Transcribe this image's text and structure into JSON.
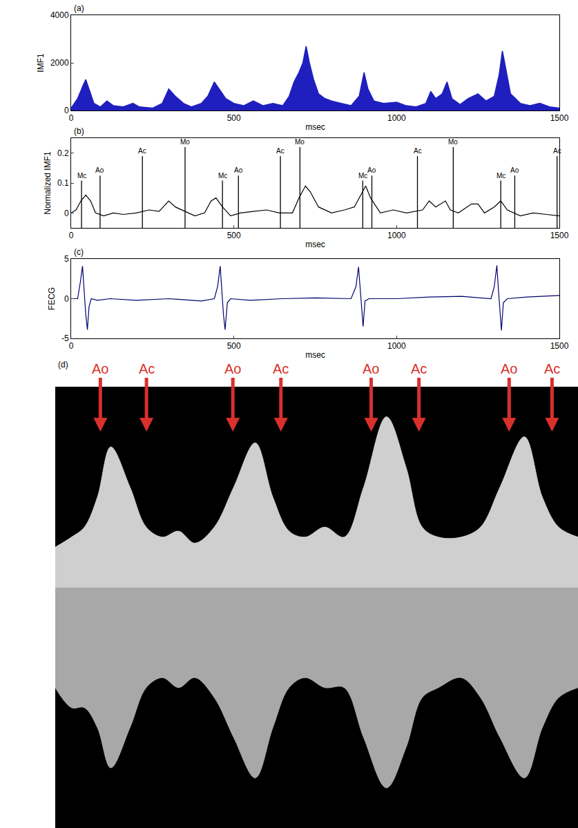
{
  "chart_data": [
    {
      "type": "area",
      "title": "(a)",
      "x_label": "msec",
      "y_label": "IMF1",
      "color": "#1f1fbf",
      "grid": false,
      "xlim": [
        0,
        1500
      ],
      "xticks": [
        0,
        500,
        1000,
        1500
      ],
      "ylim": [
        0,
        4000
      ],
      "yticks": [
        0,
        2000,
        4000
      ],
      "x": [
        0,
        20,
        35,
        45,
        55,
        70,
        90,
        110,
        130,
        160,
        190,
        210,
        250,
        280,
        300,
        320,
        345,
        370,
        400,
        420,
        440,
        455,
        475,
        500,
        530,
        560,
        590,
        620,
        650,
        670,
        685,
        700,
        712,
        722,
        732,
        745,
        760,
        780,
        800,
        830,
        860,
        885,
        900,
        912,
        930,
        960,
        1000,
        1030,
        1060,
        1090,
        1105,
        1120,
        1140,
        1155,
        1170,
        1195,
        1220,
        1250,
        1275,
        1300,
        1315,
        1325,
        1335,
        1350,
        1380,
        1410,
        1440,
        1470,
        1500
      ],
      "values": [
        100,
        500,
        1000,
        1300,
        900,
        300,
        150,
        400,
        200,
        150,
        300,
        150,
        100,
        300,
        900,
        600,
        300,
        150,
        300,
        600,
        1200,
        900,
        500,
        300,
        200,
        400,
        200,
        300,
        200,
        600,
        1200,
        1600,
        2000,
        2700,
        2000,
        1300,
        700,
        500,
        400,
        300,
        200,
        600,
        1600,
        900,
        400,
        300,
        350,
        200,
        150,
        300,
        800,
        500,
        700,
        1200,
        500,
        250,
        500,
        700,
        400,
        600,
        1500,
        2500,
        1800,
        700,
        300,
        200,
        300,
        150,
        100
      ]
    },
    {
      "type": "line",
      "title": "(b)",
      "x_label": "msec",
      "y_label": "Normalized IMF1",
      "color": "#000000",
      "grid": false,
      "xlim": [
        0,
        1500
      ],
      "xticks": [
        0,
        500,
        1000,
        1500
      ],
      "ylim": [
        -0.05,
        0.25
      ],
      "yticks": [
        0,
        0.1,
        0.2
      ],
      "x": [
        0,
        15,
        30,
        45,
        60,
        75,
        100,
        130,
        160,
        200,
        240,
        270,
        300,
        320,
        350,
        380,
        410,
        430,
        445,
        465,
        490,
        520,
        560,
        600,
        640,
        680,
        700,
        720,
        735,
        760,
        800,
        840,
        870,
        890,
        905,
        920,
        950,
        990,
        1030,
        1080,
        1100,
        1120,
        1135,
        1150,
        1165,
        1190,
        1230,
        1250,
        1270,
        1300,
        1320,
        1340,
        1380,
        1420,
        1460,
        1500
      ],
      "values": [
        0,
        0.01,
        0.04,
        0.06,
        0.04,
        0,
        -0.01,
        0,
        -0.005,
        0,
        0.01,
        0.005,
        0.04,
        0.02,
        0.005,
        -0.01,
        0,
        0.04,
        0.05,
        0.02,
        -0.01,
        0,
        0.005,
        0.01,
        0,
        0,
        0.05,
        0.09,
        0.07,
        0.02,
        0,
        0.01,
        0.02,
        0.06,
        0.09,
        0.05,
        0,
        0.01,
        0,
        0.01,
        0.04,
        0.02,
        0.03,
        0.04,
        0.01,
        0,
        0.03,
        0.03,
        0,
        0.02,
        0.04,
        0.01,
        -0.01,
        0,
        -0.005,
        -0.01
      ],
      "events": [
        {
          "label": "Mc",
          "x": 32,
          "value": 0.108
        },
        {
          "label": "Ao",
          "x": 89,
          "value": 0.125
        },
        {
          "label": "Ac",
          "x": 219,
          "value": 0.19
        },
        {
          "label": "Mo",
          "x": 350,
          "value": 0.22
        },
        {
          "label": "Mc",
          "x": 465,
          "value": 0.108
        },
        {
          "label": "Ao",
          "x": 514,
          "value": 0.125
        },
        {
          "label": "Ac",
          "x": 643,
          "value": 0.19
        },
        {
          "label": "Mo",
          "x": 703,
          "value": 0.22
        },
        {
          "label": "Mc",
          "x": 896,
          "value": 0.108
        },
        {
          "label": "Ao",
          "x": 924,
          "value": 0.125
        },
        {
          "label": "Ac",
          "x": 1064,
          "value": 0.19
        },
        {
          "label": "Mo",
          "x": 1174,
          "value": 0.22
        },
        {
          "label": "Mc",
          "x": 1320,
          "value": 0.108
        },
        {
          "label": "Ao",
          "x": 1363,
          "value": 0.125
        },
        {
          "label": "Ac",
          "x": 1493,
          "value": 0.19
        }
      ]
    },
    {
      "type": "line",
      "title": "(c)",
      "x_label": "msec",
      "y_label": "FECG",
      "color": "#00006e",
      "grid": false,
      "xlim": [
        0,
        1500
      ],
      "xticks": [
        0,
        500,
        1000,
        1500
      ],
      "ylim": [
        -5,
        5
      ],
      "yticks": [
        -5,
        0,
        5
      ],
      "x": [
        0,
        20,
        28,
        35,
        40,
        45,
        50,
        55,
        62,
        80,
        120,
        200,
        300,
        400,
        440,
        450,
        458,
        463,
        468,
        473,
        480,
        490,
        550,
        650,
        750,
        860,
        875,
        883,
        888,
        893,
        897,
        903,
        915,
        1000,
        1100,
        1200,
        1290,
        1300,
        1308,
        1313,
        1318,
        1322,
        1328,
        1340,
        1400,
        1500
      ],
      "values": [
        0,
        0,
        2,
        4.1,
        1,
        -2,
        -3.9,
        -1,
        0,
        -0.2,
        0,
        -0.2,
        0,
        -0.3,
        0,
        1.5,
        4.1,
        1,
        -2,
        -3.9,
        -0.5,
        0,
        -0.2,
        0,
        0.1,
        0,
        1.5,
        4,
        1,
        -2,
        -3.5,
        -0.3,
        0,
        0,
        0.2,
        0.3,
        0,
        1.5,
        4.2,
        1,
        -2,
        -4,
        -0.5,
        0,
        0.2,
        0.4
      ]
    },
    {
      "type": "area",
      "title": "(d)",
      "tick_labels": false,
      "grid": false,
      "xlim": [
        -50,
        1560
      ],
      "ylim": [
        -1.2,
        1
      ],
      "x": [
        -50,
        0,
        40,
        80,
        121,
        180,
        230,
        280,
        330,
        380,
        440,
        500,
        566,
        620,
        670,
        720,
        780,
        840,
        900,
        970,
        1030,
        1080,
        1130,
        1200,
        1260,
        1320,
        1395,
        1450,
        1500,
        1560
      ],
      "series": [
        {
          "color": "#cfcfcf",
          "values": [
            0.2,
            0.25,
            0.3,
            0.45,
            0.7,
            0.5,
            0.3,
            0.25,
            0.28,
            0.22,
            0.3,
            0.5,
            0.72,
            0.45,
            0.28,
            0.25,
            0.3,
            0.25,
            0.5,
            0.85,
            0.6,
            0.3,
            0.25,
            0.25,
            0.3,
            0.5,
            0.75,
            0.45,
            0.3,
            0.25
          ]
        },
        {
          "color": "#a8a8a8",
          "values": [
            -0.5,
            -0.6,
            -0.6,
            -0.7,
            -0.9,
            -0.7,
            -0.5,
            -0.45,
            -0.5,
            -0.45,
            -0.55,
            -0.75,
            -0.95,
            -0.7,
            -0.5,
            -0.45,
            -0.5,
            -0.5,
            -0.75,
            -1.0,
            -0.8,
            -0.55,
            -0.5,
            -0.45,
            -0.55,
            -0.75,
            -0.95,
            -0.7,
            -0.55,
            -0.5
          ]
        }
      ],
      "arrows": [
        {
          "label": "Ao",
          "x": 89,
          "color": "#d9302c"
        },
        {
          "label": "Ac",
          "x": 231,
          "color": "#d9302c"
        },
        {
          "label": "Ao",
          "x": 497,
          "color": "#d9302c"
        },
        {
          "label": "Ac",
          "x": 645,
          "color": "#d9302c"
        },
        {
          "label": "Ao",
          "x": 923,
          "color": "#d9302c"
        },
        {
          "label": "Ac",
          "x": 1070,
          "color": "#d9302c"
        },
        {
          "label": "Ao",
          "x": 1348,
          "color": "#d9302c"
        },
        {
          "label": "Ac",
          "x": 1480,
          "color": "#d9302c"
        }
      ]
    }
  ]
}
